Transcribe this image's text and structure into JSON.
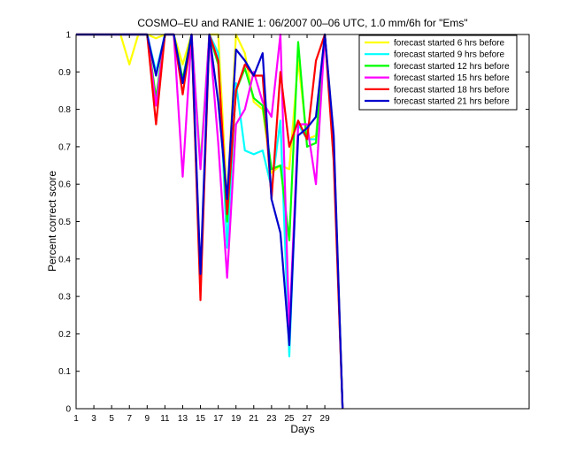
{
  "chart_data": {
    "type": "line",
    "title": "COSMO–EU and RANIE 1: 06/2007 00–06 UTC, 1.0 mm/6h for \"Ems\"",
    "xlabel": "Days",
    "ylabel": "Percent correct score",
    "xlim": [
      1,
      52
    ],
    "ylim": [
      0,
      1
    ],
    "xticks": [
      1,
      3,
      5,
      7,
      9,
      11,
      13,
      15,
      17,
      19,
      21,
      23,
      25,
      27,
      29
    ],
    "yticks": [
      0,
      0.1,
      0.2,
      0.3,
      0.4,
      0.5,
      0.6,
      0.7,
      0.8,
      0.9,
      1
    ],
    "ytick_labels": [
      "0",
      "0.1",
      "0.2",
      "0.3",
      "0.4",
      "0.5",
      "0.6",
      "0.7",
      "0.8",
      "0.9",
      "1"
    ],
    "grid": false,
    "legend_position": "top-right",
    "x": [
      1,
      2,
      3,
      4,
      5,
      6,
      7,
      8,
      9,
      10,
      11,
      12,
      13,
      14,
      15,
      16,
      17,
      18,
      19,
      20,
      21,
      22,
      23,
      24,
      25,
      26,
      27,
      28,
      29,
      30,
      31
    ],
    "series": [
      {
        "name": "forecast started 6 hrs before",
        "color": "#ffff00",
        "values": [
          1,
          1,
          1,
          1,
          1,
          1,
          0.92,
          1,
          1,
          0.99,
          1,
          1,
          0.92,
          1,
          0.66,
          1,
          1,
          0.55,
          1,
          0.95,
          0.82,
          0.8,
          0.63,
          0.65,
          0.64,
          0.93,
          0.72,
          0.73,
          1,
          0.72,
          0
        ]
      },
      {
        "name": "forecast started 9 hrs before",
        "color": "#00ffff",
        "values": [
          1,
          1,
          1,
          1,
          1,
          1,
          1,
          1,
          1,
          0.9,
          1,
          1,
          0.87,
          1,
          0.65,
          1,
          0.95,
          0.43,
          0.87,
          0.69,
          0.68,
          0.69,
          0.59,
          0.77,
          0.14,
          0.76,
          0.72,
          0.72,
          1,
          0.7,
          0
        ]
      },
      {
        "name": "forecast started 12 hrs before",
        "color": "#00ff00",
        "values": [
          1,
          1,
          1,
          1,
          1,
          1,
          1,
          1,
          1,
          0.83,
          1,
          1,
          0.88,
          1,
          0.32,
          1,
          0.92,
          0.5,
          0.85,
          0.91,
          0.83,
          0.81,
          0.64,
          0.65,
          0.45,
          0.98,
          0.7,
          0.71,
          1,
          0.7,
          0
        ]
      },
      {
        "name": "forecast started 15 hrs before",
        "color": "#ff00ff",
        "values": [
          1,
          1,
          1,
          1,
          1,
          1,
          1,
          1,
          1,
          0.81,
          1,
          1,
          0.62,
          1,
          0.64,
          1,
          0.71,
          0.35,
          0.76,
          0.8,
          0.9,
          0.82,
          0.78,
          1,
          0.21,
          0.76,
          0.76,
          0.6,
          1,
          0.7,
          0
        ]
      },
      {
        "name": "forecast started 18 hrs before",
        "color": "#ff0000",
        "values": [
          1,
          1,
          1,
          1,
          1,
          1,
          1,
          1,
          1,
          0.76,
          1,
          1,
          0.84,
          1,
          0.29,
          1,
          0.93,
          0.52,
          0.85,
          0.92,
          0.89,
          0.89,
          0.56,
          0.9,
          0.7,
          0.77,
          0.72,
          0.93,
          1,
          0.66,
          0
        ]
      },
      {
        "name": "forecast started 21 hrs before",
        "color": "#0000cc",
        "values": [
          1,
          1,
          1,
          1,
          1,
          1,
          1,
          1,
          1,
          0.89,
          1,
          1,
          0.87,
          1,
          0.36,
          1,
          0.82,
          0.56,
          0.96,
          0.93,
          0.89,
          0.95,
          0.56,
          0.47,
          0.17,
          0.73,
          0.75,
          0.78,
          1,
          0.73,
          0
        ]
      }
    ]
  }
}
